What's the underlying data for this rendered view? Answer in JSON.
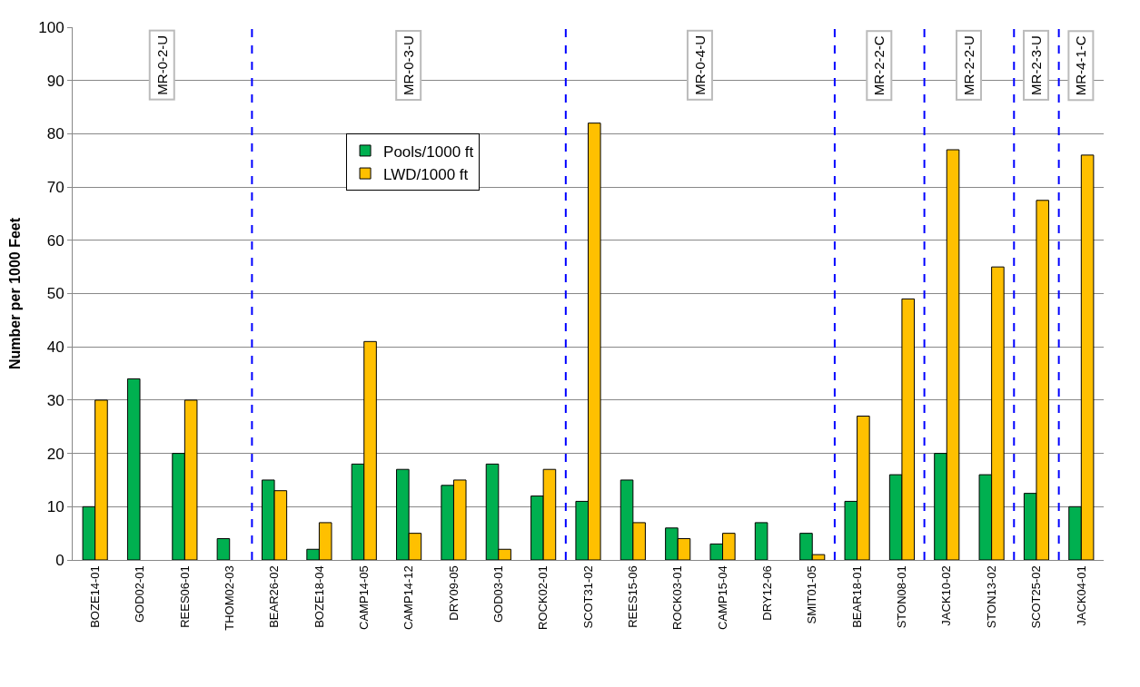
{
  "chart_data": {
    "type": "bar",
    "categories": [
      "BOZE14-01",
      "GOD02-01",
      "REES06-01",
      "THOM02-03",
      "BEAR26-02",
      "BOZE18-04",
      "CAMP14-05",
      "CAMP14-12",
      "DRY09-05",
      "GOD03-01",
      "ROCK02-01",
      "SCOT31-02",
      "REES15-06",
      "ROCK03-01",
      "CAMP15-04",
      "DRY12-06",
      "SMIT01-05",
      "BEAR18-01",
      "STON08-01",
      "JACK10-02",
      "STON13-02",
      "SCOT25-02",
      "JACK04-01"
    ],
    "series": [
      {
        "name": "Pools/1000 ft",
        "color": "#00b050",
        "values": [
          10,
          34,
          20,
          4,
          15,
          2,
          18,
          17,
          14,
          18,
          12,
          11,
          15,
          6,
          3,
          7,
          5,
          11,
          16,
          20,
          16,
          12.5,
          10
        ]
      },
      {
        "name": "LWD/1000 ft",
        "color": "#ffc000",
        "values": [
          30,
          null,
          30,
          null,
          13,
          7,
          41,
          5,
          15,
          2,
          17,
          82,
          7,
          4,
          5,
          null,
          1,
          27,
          49,
          77,
          55,
          67.5,
          76
        ]
      }
    ],
    "ylabel": "Number per 1000 Feet",
    "ylim": [
      0,
      100
    ],
    "yticks": [
      0,
      10,
      20,
      30,
      40,
      50,
      60,
      70,
      80,
      90,
      100
    ],
    "grid": "y",
    "legend": "top",
    "annotations": [
      "MR-0-2-U",
      "MR-0-3-U",
      "MR-0-4-U",
      "MR-2-2-C",
      "MR-2-2-U",
      "MR-2-3-U",
      "MR-4-1-C"
    ]
  }
}
